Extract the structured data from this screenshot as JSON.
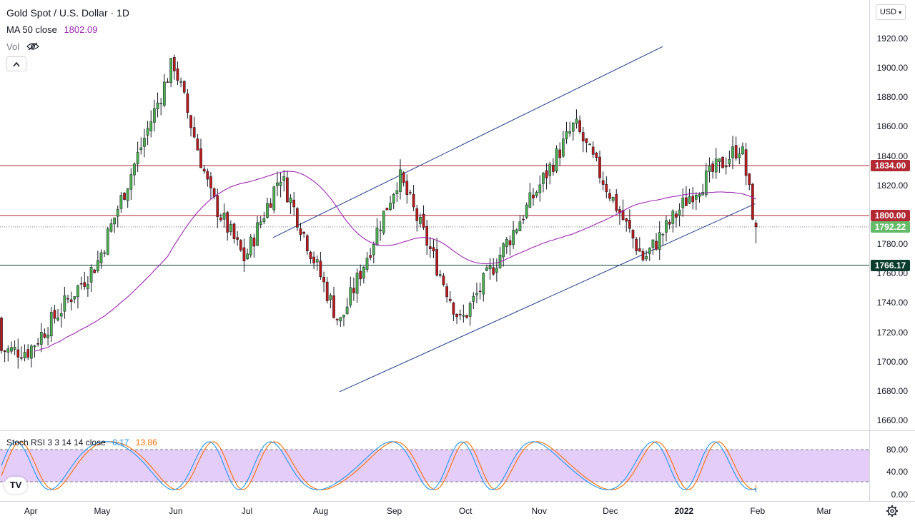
{
  "header": {
    "symbol_title": "Gold Spot / U.S. Dollar · 1D",
    "ma_label": "MA 50 close",
    "ma_value": "1802.09",
    "vol_label": "Vol",
    "collapse_symbol": "^"
  },
  "currency_selector": "USD",
  "oscillator": {
    "label": "Stoch RSI 3 3 14 14 close",
    "k_value": "0.17",
    "d_value": "13.86",
    "axis_labels": [
      "80.00",
      "40.00",
      "0.00"
    ],
    "upper_band": 80,
    "lower_band": 20,
    "colors": {
      "k": "#2196f3",
      "d": "#ff6d00",
      "band_fill": "#e1c4f9"
    }
  },
  "price_axis": {
    "labels": [
      "1920.00",
      "1900.00",
      "1880.00",
      "1860.00",
      "1840.00",
      "1820.00",
      "1800.00",
      "1780.00",
      "1760.00",
      "1740.00",
      "1720.00",
      "1700.00",
      "1680.00",
      "1660.00"
    ]
  },
  "time_axis": {
    "labels": [
      "Apr",
      "May",
      "Jun",
      "Jul",
      "Aug",
      "Sep",
      "Oct",
      "Nov",
      "Dec",
      "2022",
      "Feb",
      "Mar"
    ]
  },
  "price_tags": [
    {
      "label": "1834.00",
      "price": 1834.0,
      "color": "#b22833"
    },
    {
      "label": "1800.00",
      "price": 1800.0,
      "color": "#b22833"
    },
    {
      "label": "1792.22",
      "price": 1792.22,
      "color": "#66bb6a"
    },
    {
      "label": "1766.17",
      "price": 1766.17,
      "color": "#0b3d2e"
    }
  ],
  "logo_text": "TV",
  "chart_data": {
    "type": "candlestick",
    "title": "Gold Spot / U.S. Dollar · 1D",
    "y_range": [
      1650,
      1930
    ],
    "x_range": [
      "2021-03-19",
      "2022-03-20"
    ],
    "horizontal_lines": [
      {
        "price": 1834.0,
        "color": "#b22833"
      },
      {
        "price": 1800.0,
        "color": "#b22833"
      },
      {
        "price": 1766.17,
        "color": "#0b3d2e"
      }
    ],
    "trend_lines": [
      {
        "from": {
          "date": "2021-08-09",
          "price": 1680
        },
        "to": {
          "date": "2022-01-31",
          "price": 1808
        }
      },
      {
        "from": {
          "date": "2021-07-12",
          "price": 1785
        },
        "to": {
          "date": "2021-12-23",
          "price": 1915
        }
      }
    ],
    "colors": {
      "up": "#26a69a",
      "down": "#ef5350",
      "ma": "#9c27b0",
      "trend": "#1e3a8a"
    },
    "last_close": 1792.22,
    "ma50_last": 1802.09,
    "stoch_k_last": 0.17,
    "stoch_d_last": 13.86,
    "key_points": [
      {
        "date": "2021-03-31",
        "close": 1708
      },
      {
        "date": "2021-04-29",
        "close": 1768
      },
      {
        "date": "2021-05-31",
        "close": 1905
      },
      {
        "date": "2021-06-16",
        "close": 1812
      },
      {
        "date": "2021-06-30",
        "close": 1770
      },
      {
        "date": "2021-07-15",
        "close": 1828
      },
      {
        "date": "2021-08-09",
        "close": 1726
      },
      {
        "date": "2021-09-03",
        "close": 1827
      },
      {
        "date": "2021-09-29",
        "close": 1727
      },
      {
        "date": "2021-11-16",
        "close": 1862
      },
      {
        "date": "2021-12-15",
        "close": 1770
      },
      {
        "date": "2022-01-04",
        "close": 1815
      },
      {
        "date": "2022-01-25",
        "close": 1848
      },
      {
        "date": "2022-01-31",
        "close": 1792
      }
    ]
  }
}
